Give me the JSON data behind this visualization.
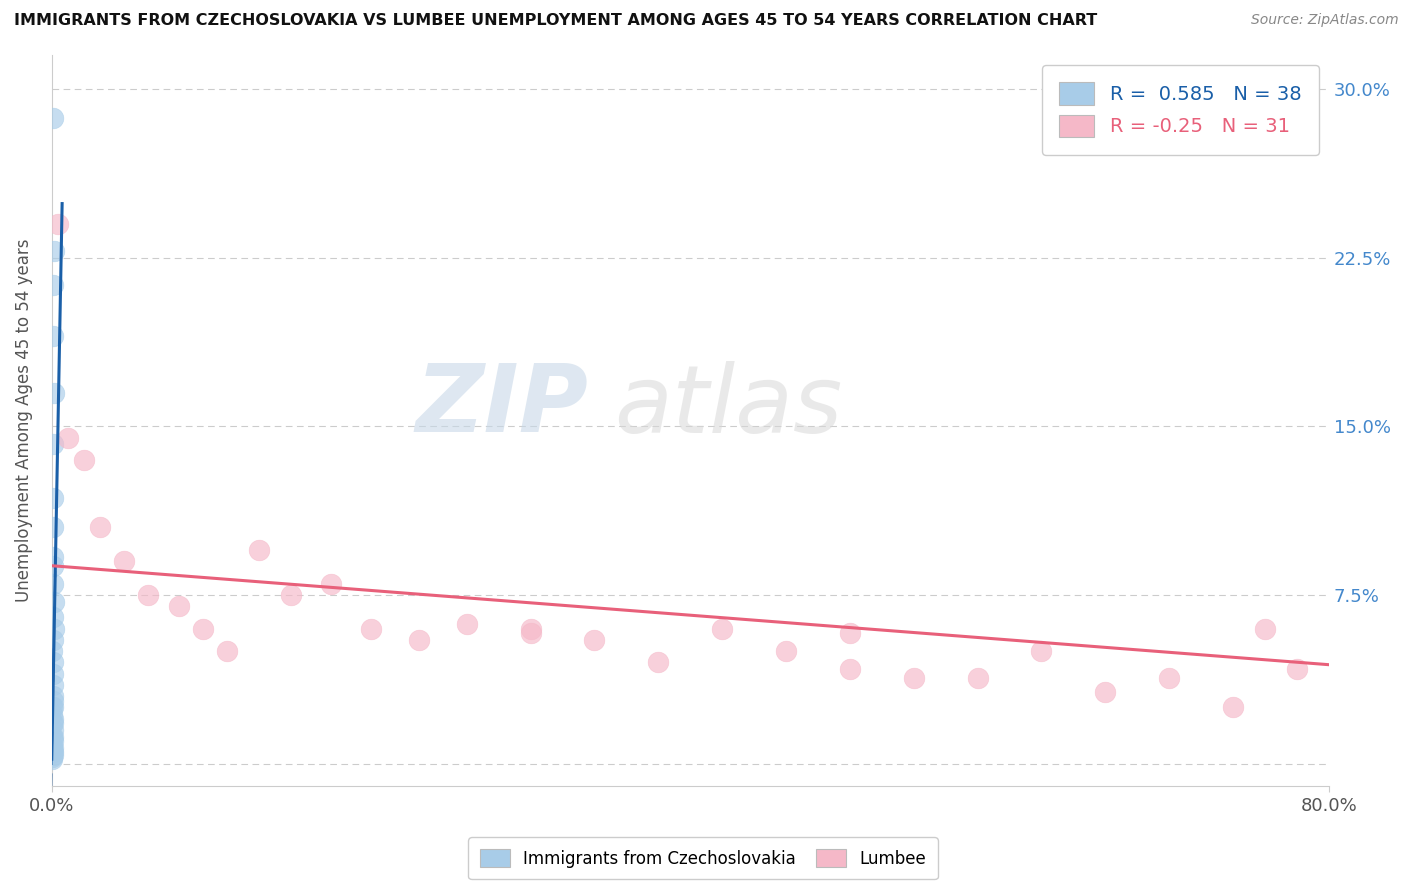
{
  "title": "IMMIGRANTS FROM CZECHOSLOVAKIA VS LUMBEE UNEMPLOYMENT AMONG AGES 45 TO 54 YEARS CORRELATION CHART",
  "source": "Source: ZipAtlas.com",
  "ylabel": "Unemployment Among Ages 45 to 54 years",
  "right_yticks": [
    0.0,
    0.075,
    0.15,
    0.225,
    0.3
  ],
  "right_yticklabels": [
    "",
    "7.5%",
    "15.0%",
    "22.5%",
    "30.0%"
  ],
  "xmin": 0.0,
  "xmax": 0.8,
  "ymin": -0.01,
  "ymax": 0.315,
  "blue_R": 0.585,
  "blue_N": 38,
  "pink_R": -0.25,
  "pink_N": 31,
  "blue_color": "#a8cce8",
  "pink_color": "#f5b8c8",
  "blue_line_color": "#1a5fa8",
  "pink_line_color": "#e8607a",
  "legend_label_blue": "Immigrants from Czechoslovakia",
  "legend_label_pink": "Lumbee",
  "watermark_zip": "ZIP",
  "watermark_atlas": "atlas",
  "blue_scatter_x": [
    0.0008,
    0.001,
    0.0005,
    0.0015,
    0.0012,
    0.0008,
    0.0006,
    0.001,
    0.0007,
    0.0009,
    0.0005,
    0.0011,
    0.0008,
    0.0013,
    0.0006,
    0.0004,
    0.0009,
    0.0007,
    0.0005,
    0.0008,
    0.0006,
    0.001,
    0.0004,
    0.0007,
    0.0009,
    0.0005,
    0.0006,
    0.0008,
    0.0003,
    0.0007,
    0.0004,
    0.0006,
    0.0005,
    0.0003,
    0.0004,
    0.0002,
    0.0003,
    0.0002
  ],
  "blue_scatter_y": [
    0.287,
    0.213,
    0.19,
    0.228,
    0.165,
    0.142,
    0.118,
    0.105,
    0.092,
    0.08,
    0.088,
    0.072,
    0.065,
    0.06,
    0.055,
    0.05,
    0.045,
    0.04,
    0.035,
    0.03,
    0.028,
    0.025,
    0.022,
    0.02,
    0.018,
    0.015,
    0.012,
    0.01,
    0.008,
    0.007,
    0.006,
    0.005,
    0.004,
    0.003,
    0.025,
    0.018,
    0.012,
    0.002
  ],
  "pink_scatter_x": [
    0.004,
    0.01,
    0.02,
    0.03,
    0.045,
    0.06,
    0.08,
    0.095,
    0.11,
    0.13,
    0.15,
    0.175,
    0.2,
    0.23,
    0.26,
    0.3,
    0.34,
    0.38,
    0.42,
    0.46,
    0.5,
    0.54,
    0.58,
    0.62,
    0.66,
    0.7,
    0.74,
    0.76,
    0.78,
    0.3,
    0.5
  ],
  "pink_scatter_y": [
    0.24,
    0.145,
    0.135,
    0.105,
    0.09,
    0.075,
    0.07,
    0.06,
    0.05,
    0.095,
    0.075,
    0.08,
    0.06,
    0.055,
    0.062,
    0.06,
    0.055,
    0.045,
    0.06,
    0.05,
    0.042,
    0.038,
    0.038,
    0.05,
    0.032,
    0.038,
    0.025,
    0.06,
    0.042,
    0.058,
    0.058
  ],
  "blue_line_slope": 38.0,
  "blue_line_intercept": 0.002,
  "blue_line_x_solid_start": 0.0,
  "blue_line_x_solid_end": 0.0065,
  "blue_line_x_dash_start": -0.0008,
  "blue_line_x_dash_end": 0.0022,
  "pink_line_slope": -0.055,
  "pink_line_intercept": 0.088,
  "pink_line_x_start": 0.0,
  "pink_line_x_end": 0.8
}
